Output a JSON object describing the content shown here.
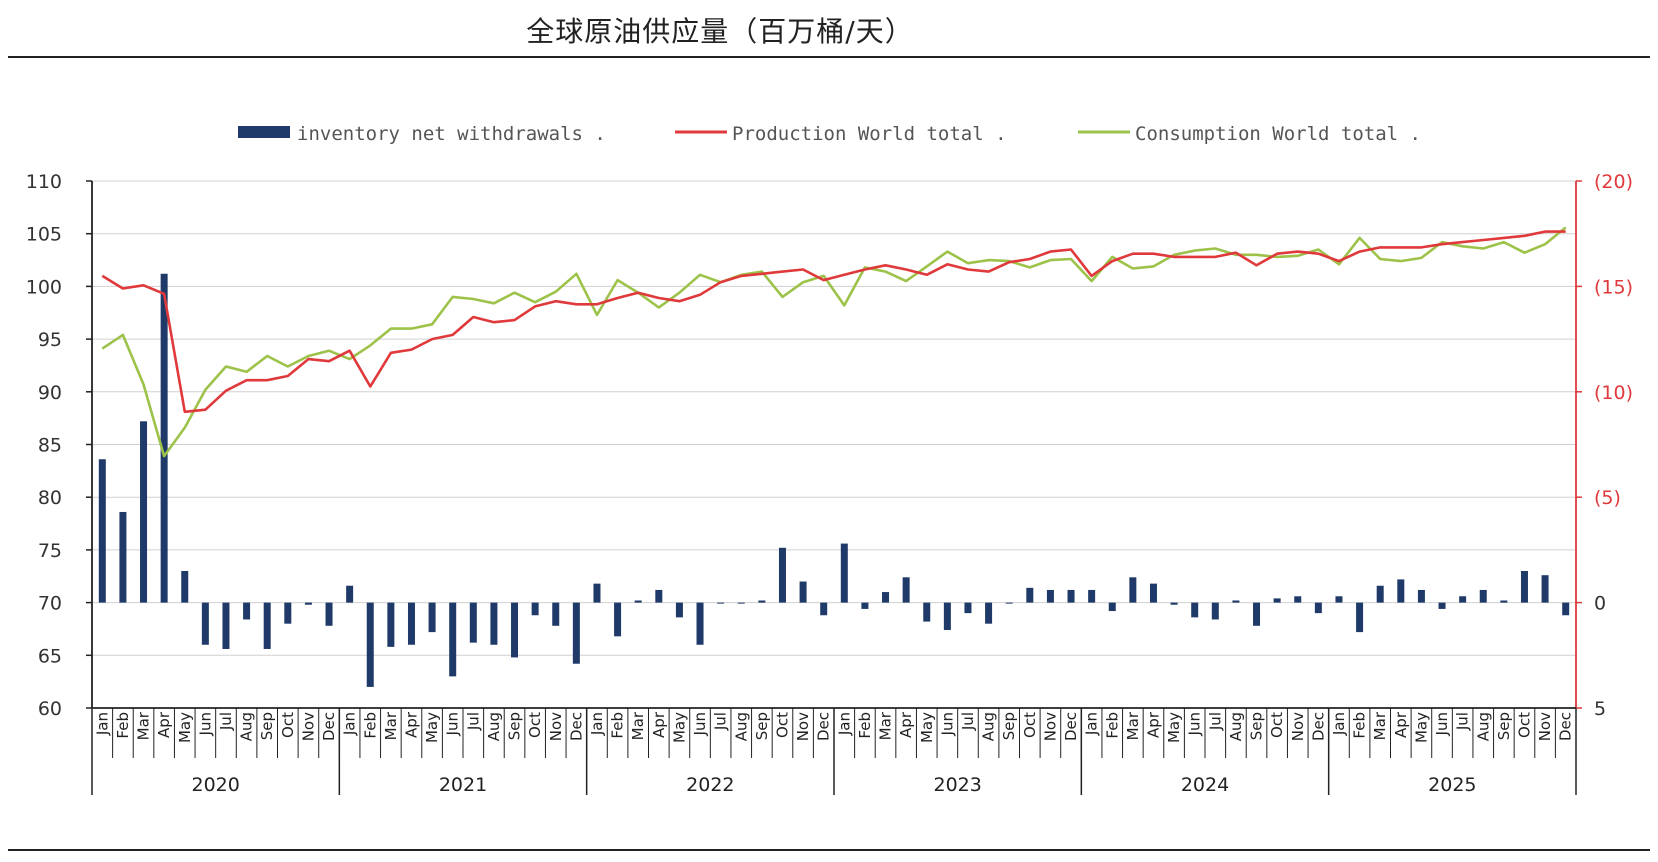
{
  "title": "全球原油供应量（百万桶/天）",
  "colors": {
    "bar": "#1f3a68",
    "production": "#e0393b",
    "consumption": "#9dc24a",
    "axis": "#222222",
    "grid": "#d0d0d0"
  },
  "chart_data": {
    "type": "bar+line",
    "title": "全球原油供应量（百万桶/天）",
    "legend": [
      "inventory net withdrawals .",
      "Production World total .",
      "Consumption World total ."
    ],
    "legend_position": "top",
    "grid": true,
    "y_left": {
      "range": [
        60,
        110
      ],
      "ticks": [
        "110",
        "105",
        "100",
        "95",
        "90",
        "85",
        "80",
        "75",
        "70",
        "65",
        "60"
      ]
    },
    "y_right": {
      "range": [
        5,
        -20
      ],
      "ticks": [
        "(20)",
        "(15)",
        "(10)",
        "(5)",
        "0",
        "5"
      ]
    },
    "months": [
      "Jan",
      "Feb",
      "Mar",
      "Apr",
      "May",
      "Jun",
      "Jul",
      "Aug",
      "Sep",
      "Oct",
      "Nov",
      "Dec"
    ],
    "years": [
      "2020",
      "2021",
      "2022",
      "2023",
      "2024",
      "2025"
    ],
    "series": [
      {
        "name": "inventory net withdrawals .",
        "axis": "right",
        "type": "bar",
        "values": [
          -6.8,
          -4.3,
          -8.6,
          -15.6,
          -1.5,
          2.0,
          2.2,
          0.8,
          2.2,
          1.0,
          0.1,
          1.1,
          -0.8,
          4.0,
          2.1,
          2.0,
          1.4,
          3.5,
          1.9,
          2.0,
          2.6,
          0.6,
          1.1,
          2.9,
          -0.9,
          1.6,
          -0.1,
          -0.6,
          0.7,
          2.0,
          0.0,
          0.0,
          -0.1,
          -2.6,
          -1.0,
          0.6,
          -2.8,
          0.3,
          -0.5,
          -1.2,
          0.9,
          1.3,
          0.5,
          1.0,
          0.0,
          -0.7,
          -0.6,
          -0.6,
          -0.6,
          0.4,
          -1.2,
          -0.9,
          0.1,
          0.7,
          0.8,
          -0.1,
          1.1,
          -0.2,
          -0.3,
          0.5,
          -0.3,
          1.4,
          -0.8,
          -1.1,
          -0.6,
          0.3,
          -0.3,
          -0.6,
          -0.1,
          -1.5,
          -1.3,
          0.6
        ]
      },
      {
        "name": "Production World total .",
        "axis": "left",
        "type": "line",
        "values": [
          101.0,
          99.8,
          100.1,
          99.3,
          88.1,
          88.3,
          90.1,
          91.1,
          91.1,
          91.5,
          93.1,
          92.9,
          93.9,
          90.5,
          93.7,
          94.0,
          95.0,
          95.4,
          97.1,
          96.6,
          96.8,
          98.1,
          98.6,
          98.3,
          98.3,
          98.9,
          99.4,
          98.9,
          98.6,
          99.2,
          100.4,
          101.0,
          101.2,
          101.4,
          101.6,
          100.6,
          101.1,
          101.6,
          102.0,
          101.6,
          101.1,
          102.1,
          101.6,
          101.4,
          102.3,
          102.6,
          103.3,
          103.5,
          101.0,
          102.4,
          103.1,
          103.1,
          102.8,
          102.8,
          102.8,
          103.2,
          102.0,
          103.1,
          103.3,
          103.1,
          102.4,
          103.3,
          103.7,
          103.7,
          103.7,
          104.0,
          104.2,
          104.4,
          104.6,
          104.8,
          105.2,
          105.2
        ]
      },
      {
        "name": "Consumption World total .",
        "axis": "left",
        "type": "line",
        "values": [
          94.1,
          95.4,
          90.7,
          83.9,
          86.6,
          90.2,
          92.4,
          91.9,
          93.4,
          92.4,
          93.4,
          93.9,
          93.1,
          94.4,
          96.0,
          96.0,
          96.4,
          99.0,
          98.8,
          98.4,
          99.4,
          98.5,
          99.5,
          101.2,
          97.3,
          100.6,
          99.4,
          98.0,
          99.4,
          101.1,
          100.4,
          101.1,
          101.4,
          99.0,
          100.4,
          101.0,
          98.2,
          101.8,
          101.4,
          100.5,
          101.9,
          103.3,
          102.2,
          102.5,
          102.4,
          101.8,
          102.5,
          102.6,
          100.5,
          102.8,
          101.7,
          101.9,
          103.0,
          103.4,
          103.6,
          103.0,
          103.0,
          102.8,
          102.9,
          103.5,
          102.1,
          104.6,
          102.6,
          102.4,
          102.7,
          104.2,
          103.8,
          103.6,
          104.2,
          103.2,
          104.0,
          105.6
        ]
      }
    ]
  }
}
